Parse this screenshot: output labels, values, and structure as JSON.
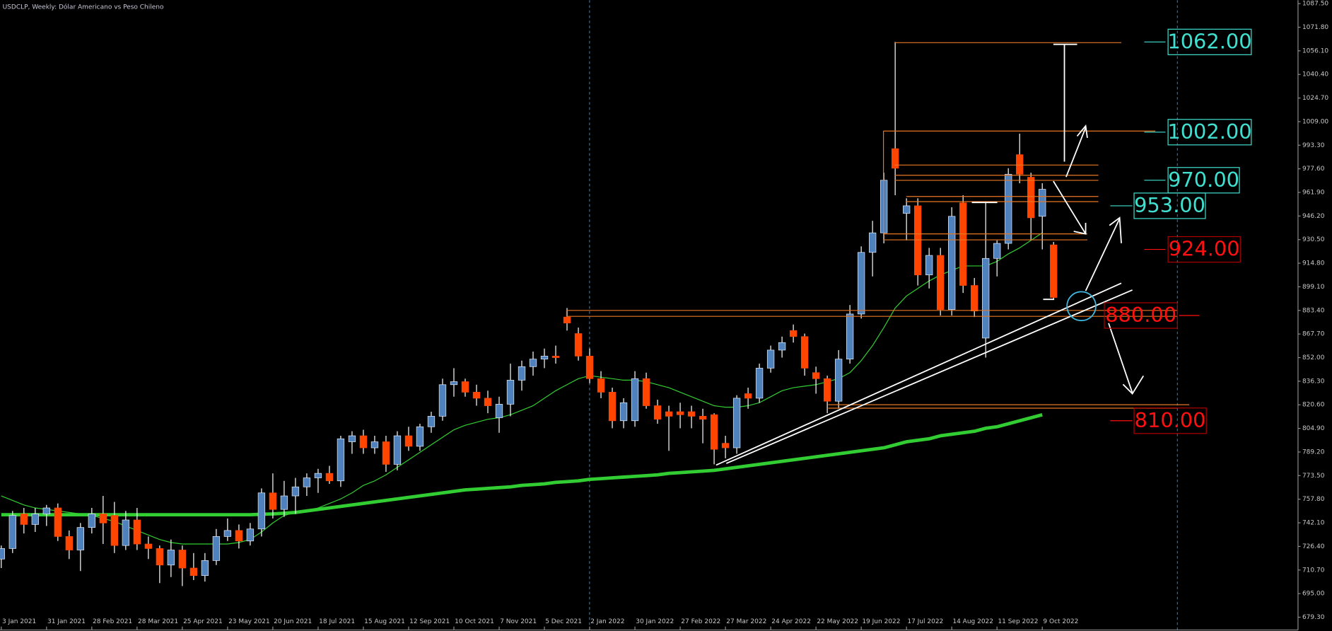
{
  "chart_data": {
    "type": "candlestick",
    "title": "USDCLP, Weekly:  Dólar Americano vs Peso Chileno",
    "categories": [
      "3 Jan 2021",
      null,
      null,
      null,
      "31 Jan 2021",
      null,
      null,
      null,
      "28 Feb 2021",
      null,
      null,
      null,
      "28 Mar 2021",
      null,
      null,
      null,
      "25 Apr 2021",
      null,
      null,
      null,
      "23 May 2021",
      null,
      null,
      null,
      "20 Jun 2021",
      null,
      null,
      null,
      "18 Jul 2021",
      null,
      null,
      null,
      "15 Aug 2021",
      null,
      null,
      null,
      "12 Sep 2021",
      null,
      null,
      null,
      "10 Oct 2021",
      null,
      null,
      null,
      "7 Nov 2021",
      null,
      null,
      null,
      "5 Dec 2021",
      null,
      null,
      null,
      "2 Jan 2022",
      null,
      null,
      null,
      "30 Jan 2022",
      null,
      null,
      null,
      "27 Feb 2022",
      null,
      null,
      null,
      "27 Mar 2022",
      null,
      null,
      null,
      "24 Apr 2022",
      null,
      null,
      null,
      "22 May 2022",
      null,
      null,
      null,
      "19 Jun 2022",
      null,
      null,
      null,
      "17 Jul 2022",
      null,
      null,
      null,
      "14 Aug 2022",
      null,
      null,
      null,
      "11 Sep 2022",
      null,
      null,
      null,
      "9 Oct 2022",
      null
    ],
    "open": [
      718,
      725,
      748,
      741,
      748,
      752,
      733,
      724,
      739,
      748,
      747,
      727,
      744,
      728,
      725,
      714,
      724,
      712,
      707,
      717,
      733,
      737,
      730,
      738,
      762,
      751,
      760,
      766,
      772,
      775,
      770,
      796,
      800,
      792,
      796,
      781,
      800,
      793,
      806,
      813,
      834,
      836,
      829,
      825,
      812,
      821,
      837,
      846,
      851,
      853,
      879,
      868,
      853,
      838,
      829,
      810,
      810,
      838,
      820,
      816,
      816,
      816,
      813,
      814,
      795,
      792,
      828,
      825,
      845,
      857,
      870,
      866,
      842,
      838,
      823,
      851,
      881,
      922,
      935,
      991,
      948,
      953,
      907,
      920,
      884,
      955,
      900,
      865,
      918,
      928,
      987,
      972,
      946,
      927
    ],
    "high": [
      727,
      750,
      752,
      752,
      754,
      755,
      737,
      742,
      752,
      760,
      756,
      750,
      752,
      733,
      727,
      731,
      727,
      722,
      722,
      738,
      745,
      741,
      742,
      765,
      775,
      770,
      772,
      775,
      778,
      780,
      800,
      803,
      804,
      800,
      800,
      803,
      806,
      808,
      816,
      838,
      845,
      838,
      834,
      830,
      826,
      848,
      850,
      856,
      858,
      860,
      885,
      872,
      858,
      843,
      832,
      825,
      843,
      842,
      824,
      820,
      822,
      820,
      818,
      815,
      800,
      827,
      832,
      848,
      860,
      866,
      874,
      868,
      846,
      840,
      857,
      887,
      926,
      943,
      975,
      1062,
      958,
      958,
      925,
      925,
      952,
      960,
      905,
      955,
      930,
      978,
      1001,
      975,
      968,
      929
    ],
    "low": [
      712,
      722,
      735,
      736,
      740,
      730,
      718,
      710,
      735,
      728,
      722,
      724,
      724,
      718,
      702,
      706,
      700,
      704,
      703,
      714,
      730,
      725,
      727,
      733,
      745,
      746,
      748,
      760,
      762,
      768,
      766,
      788,
      788,
      788,
      776,
      777,
      790,
      790,
      802,
      810,
      826,
      826,
      820,
      815,
      802,
      813,
      830,
      840,
      845,
      848,
      870,
      850,
      835,
      825,
      805,
      805,
      806,
      818,
      808,
      790,
      805,
      805,
      795,
      781,
      785,
      788,
      818,
      822,
      842,
      852,
      862,
      840,
      828,
      815,
      818,
      848,
      878,
      906,
      928,
      960,
      930,
      900,
      898,
      880,
      880,
      895,
      879,
      852,
      906,
      924,
      968,
      930,
      924,
      891
    ],
    "close": [
      725,
      747,
      741,
      748,
      752,
      733,
      724,
      739,
      748,
      742,
      727,
      744,
      728,
      725,
      714,
      724,
      712,
      707,
      717,
      733,
      737,
      730,
      738,
      762,
      751,
      760,
      766,
      772,
      775,
      770,
      798,
      800,
      792,
      796,
      781,
      800,
      793,
      806,
      813,
      834,
      836,
      829,
      825,
      820,
      821,
      837,
      846,
      851,
      853,
      852,
      875,
      853,
      838,
      829,
      810,
      822,
      838,
      820,
      811,
      813,
      814,
      813,
      811,
      791,
      792,
      825,
      825,
      845,
      857,
      862,
      866,
      845,
      838,
      823,
      851,
      881,
      922,
      935,
      970,
      978,
      953,
      907,
      920,
      884,
      946,
      900,
      883,
      918,
      928,
      974,
      974,
      945,
      964,
      892
    ],
    "up_color": "#4f81bd",
    "down_color": "#ff4500",
    "series": [
      {
        "color": "#32cd32",
        "width": 1,
        "values": [
          760,
          757,
          754,
          752,
          751,
          750,
          749,
          748,
          747,
          745,
          743,
          740,
          737,
          734,
          731,
          729,
          728,
          728,
          728,
          728,
          728,
          729,
          731,
          736,
          742,
          747,
          749,
          750,
          752,
          755,
          758,
          762,
          767,
          770,
          774,
          779,
          784,
          789,
          794,
          799,
          804,
          807,
          809,
          811,
          812,
          814,
          817,
          820,
          825,
          830,
          834,
          838,
          840,
          839,
          838,
          837,
          837,
          836,
          834,
          832,
          829,
          826,
          823,
          820,
          819,
          819,
          820,
          822,
          826,
          830,
          832,
          833,
          834,
          836,
          838,
          842,
          850,
          860,
          872,
          885,
          893,
          898,
          903,
          907,
          910,
          913,
          913,
          913,
          916,
          921,
          925,
          930,
          935,
          null
        ]
      },
      {
        "color": "#32cd32",
        "width": 4,
        "values": [
          747.5,
          747.5,
          747.5,
          747.5,
          747.5,
          747.5,
          747.5,
          747.5,
          747.5,
          747.5,
          747.5,
          747.5,
          747.5,
          747.5,
          747.5,
          747.5,
          747.5,
          747.5,
          747.5,
          747.5,
          747.5,
          747.5,
          747.5,
          747.8,
          748,
          748.5,
          749,
          750,
          751,
          752,
          753,
          754,
          755,
          756,
          757,
          758,
          759,
          760,
          761,
          762,
          763,
          764,
          764.5,
          765,
          765.5,
          766,
          767,
          767.5,
          768,
          769,
          769.5,
          770,
          771,
          771.5,
          772,
          772.5,
          773,
          773.5,
          774,
          775,
          775.5,
          776,
          776.5,
          777,
          778,
          779,
          780,
          781,
          782,
          783,
          784,
          785,
          786,
          787,
          788,
          789,
          790,
          791,
          792,
          794,
          796,
          797,
          798,
          800,
          801,
          802,
          803,
          805,
          806,
          808,
          810,
          812,
          814,
          null
        ]
      }
    ],
    "levels": [
      {
        "value": 1062,
        "label": "1062.00",
        "color": "#40e0d0"
      },
      {
        "value": 1002,
        "label": "1002.00",
        "color": "#40e0d0"
      },
      {
        "value": 970,
        "label": "970.00",
        "color": "#40e0d0"
      },
      {
        "value": 953,
        "label": "953.00",
        "color": "#40e0d0"
      },
      {
        "value": 924,
        "label": "924.00",
        "color": "#ff1010"
      },
      {
        "value": 880,
        "label": "880.00",
        "color": "#ff1010"
      },
      {
        "value": 810,
        "label": "810.00",
        "color": "#ff1010"
      }
    ],
    "ylim": [
      670.8,
      1089.8
    ],
    "yticks": [
      {
        "value": 1087.5,
        "label": "1087.50"
      },
      {
        "value": 1071.8,
        "label": "1071.80"
      },
      {
        "value": 1056.1,
        "label": "1056.10"
      },
      {
        "value": 1040.4,
        "label": "1040.40"
      },
      {
        "value": 1024.7,
        "label": "1024.70"
      },
      {
        "value": 1009,
        "label": "1009.00"
      },
      {
        "value": 993.3,
        "label": "993.30"
      },
      {
        "value": 977.6,
        "label": "977.60"
      },
      {
        "value": 961.9,
        "label": "961.90"
      },
      {
        "value": 946.2,
        "label": "946.20"
      },
      {
        "value": 930.5,
        "label": "930.50"
      },
      {
        "value": 914.8,
        "label": "914.80"
      },
      {
        "value": 899.1,
        "label": "899.10"
      },
      {
        "value": 883.4,
        "label": "883.40"
      },
      {
        "value": 867.7,
        "label": "867.70"
      },
      {
        "value": 852,
        "label": "852.00"
      },
      {
        "value": 836.3,
        "label": "836.30"
      },
      {
        "value": 820.6,
        "label": "820.60"
      },
      {
        "value": 804.9,
        "label": "804.90"
      },
      {
        "value": 789.2,
        "label": "789.20"
      },
      {
        "value": 773.5,
        "label": "773.50"
      },
      {
        "value": 757.8,
        "label": "757.80"
      },
      {
        "value": 742.1,
        "label": "742.10"
      },
      {
        "value": 726.4,
        "label": "726.40"
      },
      {
        "value": 710.7,
        "label": "710.70"
      },
      {
        "value": 695,
        "label": "695.00"
      },
      {
        "value": 679.3,
        "label": "679.30"
      }
    ]
  }
}
